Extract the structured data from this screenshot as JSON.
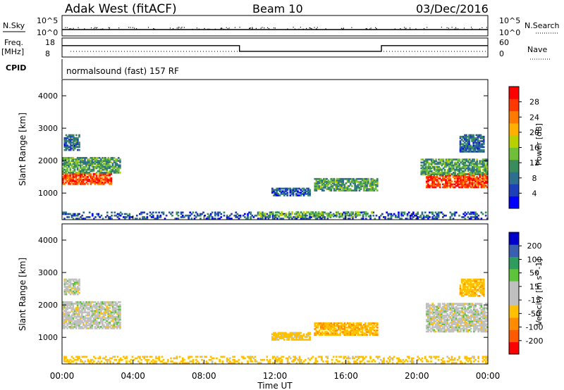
{
  "header": {
    "station": "Adak West (fitACF)",
    "beam": "Beam 10",
    "date": "03/Dec/2016"
  },
  "labels": {
    "nsky": "N.Sky",
    "nsearch": "N.Search",
    "nave": "Nave",
    "freq": "Freq.",
    "mhz": "[MHz]",
    "cpid": "CPID",
    "program": "normalsound (fast) 157 RF",
    "slant_range": "Slant Range [km]",
    "time_ut": "Time UT",
    "noise_top": "10^5",
    "noise_bottom": "10^0",
    "freq_top": "18",
    "freq_bottom": "8",
    "nave_top": "60",
    "nave_bottom": "0"
  },
  "colors": {
    "power": [
      "#0000ff",
      "#1e3fb8",
      "#2e6f8f",
      "#3a8c5a",
      "#6fbf3a",
      "#b8d000",
      "#ffb000",
      "#ff7a00",
      "#ff3a00",
      "#ff0000"
    ],
    "velocity": [
      "#ff0000",
      "#ff5a00",
      "#ff8c00",
      "#ffc000",
      "#c0c0c0",
      "#c0c0c0",
      "#5ec23a",
      "#2f9c5f",
      "#3a5fb0",
      "#0000cc"
    ],
    "ground_gray": "#bdbdbd"
  },
  "chart_data": [
    {
      "type": "heatmap",
      "name": "Power",
      "colorbar_label": "Power [dB]",
      "colorbar_ticks": [
        "28",
        "24",
        "20",
        "16",
        "12",
        "8",
        "4"
      ],
      "x_ticks": [
        "00:00",
        "04:00",
        "08:00",
        "12:00",
        "16:00",
        "20:00",
        "00:00"
      ],
      "xlim_hours": [
        0,
        24
      ],
      "y_ticks": [
        "4000",
        "3000",
        "2000",
        "1000"
      ],
      "ylim_km": [
        180,
        4500
      ],
      "regions": [
        {
          "t0": 0.0,
          "t1": 2.8,
          "r0": 1250,
          "r1": 1600,
          "value": 27
        },
        {
          "t0": 0.0,
          "t1": 3.3,
          "r0": 1600,
          "r1": 2100,
          "value": 12
        },
        {
          "t0": 0.1,
          "t1": 1.0,
          "r0": 2300,
          "r1": 2800,
          "value": 8
        },
        {
          "t0": 14.2,
          "t1": 17.8,
          "r0": 1050,
          "r1": 1450,
          "value": 12
        },
        {
          "t0": 11.8,
          "t1": 14.0,
          "r0": 900,
          "r1": 1150,
          "value": 6
        },
        {
          "t0": 20.5,
          "t1": 24.0,
          "r0": 1150,
          "r1": 1600,
          "value": 27
        },
        {
          "t0": 20.2,
          "t1": 24.0,
          "r0": 1550,
          "r1": 2050,
          "value": 12
        },
        {
          "t0": 22.4,
          "t1": 23.8,
          "r0": 2250,
          "r1": 2800,
          "value": 8
        },
        {
          "t0": 0.0,
          "t1": 24.0,
          "r0": 180,
          "r1": 420,
          "value": 6
        },
        {
          "t0": 11.0,
          "t1": 17.5,
          "r0": 250,
          "r1": 420,
          "value": 14
        }
      ]
    },
    {
      "type": "heatmap",
      "name": "Velocity",
      "colorbar_label": "Velocity [m s^-1]",
      "colorbar_ticks": [
        "200",
        "100",
        "50",
        "15",
        "-15",
        "-50",
        "-100",
        "-200"
      ],
      "x_ticks": [
        "00:00",
        "04:00",
        "08:00",
        "12:00",
        "16:00",
        "20:00",
        "00:00"
      ],
      "xlim_hours": [
        0,
        24
      ],
      "y_ticks": [
        "4000",
        "3000",
        "2000",
        "1000"
      ],
      "ylim_km": [
        180,
        4500
      ],
      "regions": [
        {
          "t0": 0.0,
          "t1": 3.3,
          "r0": 1250,
          "r1": 2100,
          "value": 0
        },
        {
          "t0": 0.1,
          "t1": 1.0,
          "r0": 2300,
          "r1": 2800,
          "value": 0
        },
        {
          "t0": 14.2,
          "t1": 17.8,
          "r0": 1050,
          "r1": 1450,
          "value": -40
        },
        {
          "t0": 11.8,
          "t1": 14.0,
          "r0": 900,
          "r1": 1150,
          "value": -30
        },
        {
          "t0": 20.5,
          "t1": 24.0,
          "r0": 1150,
          "r1": 2050,
          "value": 0
        },
        {
          "t0": 22.4,
          "t1": 23.8,
          "r0": 2250,
          "r1": 2800,
          "value": -35
        },
        {
          "t0": 0.0,
          "t1": 24.0,
          "r0": 180,
          "r1": 420,
          "value": -30
        }
      ]
    }
  ],
  "frequency_series": {
    "x_hours": [
      0,
      10,
      10,
      18,
      18,
      24
    ],
    "y_mhz": [
      14,
      14,
      11,
      11,
      14,
      14
    ]
  }
}
